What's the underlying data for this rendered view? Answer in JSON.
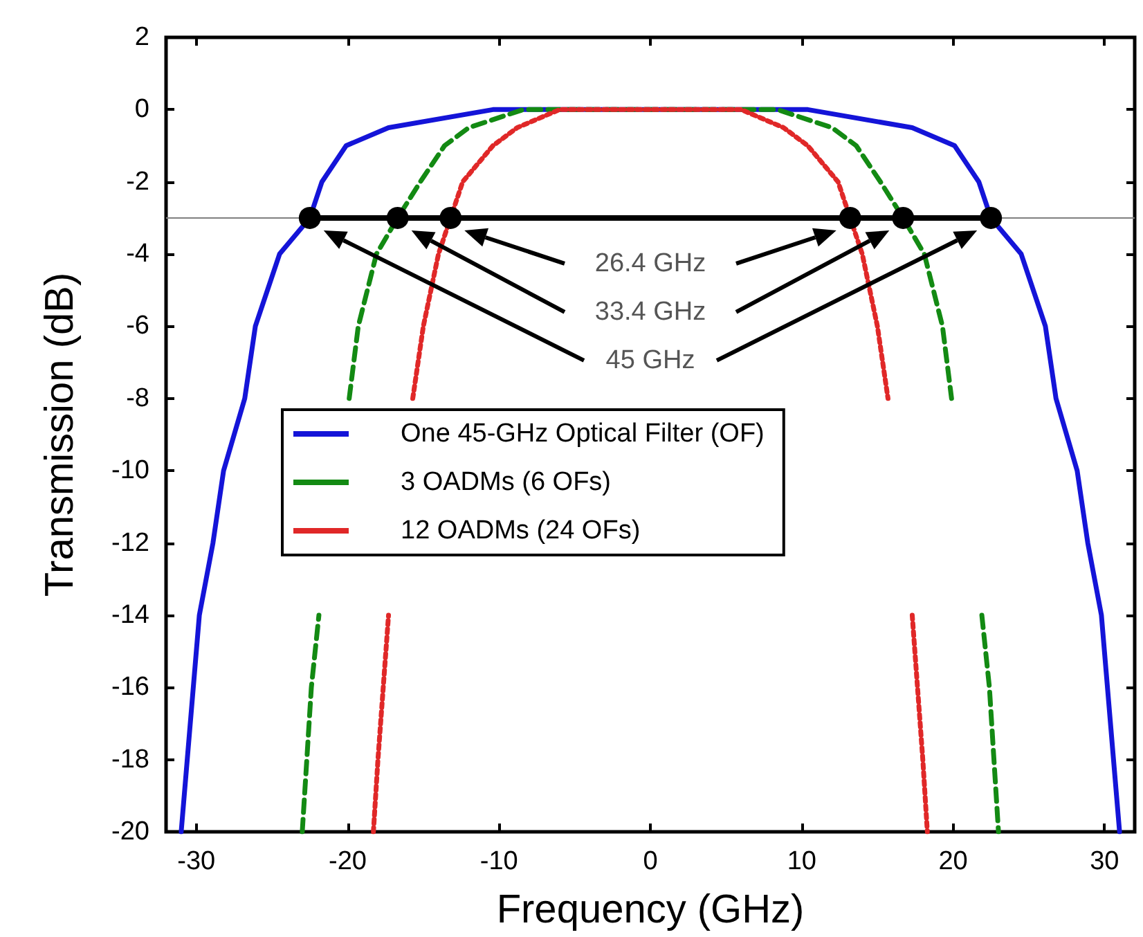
{
  "chart_data": {
    "type": "line",
    "xlabel": "Frequency (GHz)",
    "ylabel": "Transmission (dB)",
    "xlim": [
      -32,
      32
    ],
    "xticks": [
      -30,
      -20,
      -10,
      0,
      10,
      20,
      30
    ],
    "ylim": [
      -20,
      2
    ],
    "yticks": [
      -20,
      -18,
      -16,
      -14,
      -12,
      -10,
      -8,
      -6,
      -4,
      -2,
      0,
      2
    ],
    "grid": false,
    "legend": "center",
    "marker": "none",
    "series": [
      {
        "name": "One 45-GHz Optical Filter (OF)",
        "color": "#1414d8",
        "line_style": "solid",
        "x": [
          -31,
          -30.6,
          -30.2,
          -29.8,
          -28.9,
          -28.2,
          -26.8,
          -26.1,
          -24.5,
          -22.5,
          -21.7,
          -20.1,
          -17.3,
          -10.4,
          10.4,
          17.3,
          20.1,
          21.7,
          22.5,
          24.5,
          26.1,
          26.8,
          28.2,
          28.9,
          29.8,
          30.2,
          30.6,
          31
        ],
        "values": [
          -20,
          -18,
          -16,
          -14,
          -12,
          -10,
          -8,
          -6,
          -4,
          -3,
          -2,
          -1,
          -0.5,
          0,
          0,
          -0.5,
          -1,
          -2,
          -3,
          -4,
          -6,
          -8,
          -10,
          -12,
          -14,
          -16,
          -18,
          -20
        ]
      },
      {
        "name": "3 OADMs (6 OFs)",
        "color": "#138a13",
        "line_style": "dashed",
        "x": [
          -23,
          -22.7,
          -22.4,
          -21.9,
          -21.3,
          -20.9,
          -19.9,
          -19.3,
          -18.1,
          -16.7,
          -15.2,
          -13.6,
          -12,
          -8.4,
          8.4,
          12,
          13.6,
          15.2,
          16.7,
          18.1,
          19.3,
          19.9,
          20.9,
          21.3,
          21.9,
          22.4,
          22.7,
          23
        ],
        "values": [
          -20,
          -18,
          -16,
          -14,
          null,
          null,
          -8,
          -6,
          -4,
          -3,
          -2,
          -1,
          -0.5,
          0,
          0,
          -0.5,
          -1,
          -2,
          -3,
          -4,
          -6,
          -8,
          null,
          null,
          -14,
          -16,
          -18,
          -20
        ]
      },
      {
        "name": "12 OADMs (24 OFs)",
        "color": "#e02828",
        "line_style": "dotted",
        "x": [
          -18.3,
          -18,
          -17.65,
          -17.3,
          -17,
          -16.4,
          -15.7,
          -15,
          -14,
          -13.2,
          -12.4,
          -10.4,
          -8.8,
          -6,
          6,
          8.8,
          10.4,
          12.4,
          13.2,
          14,
          15,
          15.7,
          16.4,
          17,
          17.3,
          17.65,
          18,
          18.3
        ],
        "values": [
          -20,
          -18,
          -16,
          -14,
          null,
          null,
          -8,
          -6,
          -4,
          -3,
          -2,
          -1,
          -0.5,
          0,
          0,
          -0.5,
          -1,
          -2,
          -3,
          -4,
          -6,
          -8,
          null,
          null,
          -14,
          -16,
          -18,
          -20
        ]
      },
      {
        "color": "#000000",
        "line_style": "solid",
        "marker": "circle",
        "x": [
          -22.5,
          -16.7,
          -13.2,
          13.2,
          16.7,
          22.5
        ],
        "values": [
          -3,
          -3,
          -3,
          -3,
          -3,
          -3
        ]
      }
    ],
    "ref_lines": [
      {
        "axis": "y",
        "value": -3,
        "color": "#808080"
      }
    ],
    "annotations": [
      "26.4 GHz",
      "33.4 GHz",
      "45 GHz"
    ]
  }
}
